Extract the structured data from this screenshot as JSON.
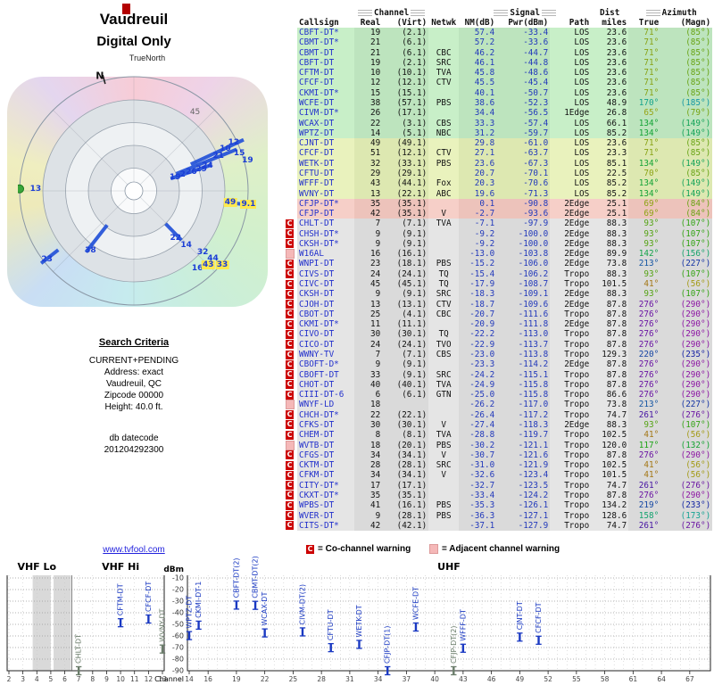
{
  "header": {
    "title": "Vaudreuil",
    "subtitle": "Digital Only"
  },
  "radar": {
    "true_north_label": "TrueNorth",
    "north_label": "N",
    "north_tick_angle": 345,
    "ring_label": "45",
    "spoke_color": "#1f4fd8",
    "dot": {
      "a": 271,
      "r": 1.0,
      "color": "#3aa53a"
    },
    "spokes": [
      {
        "a": 65,
        "r1": 0.55,
        "r2": 1.06
      },
      {
        "a": 68,
        "r1": 0.4,
        "r2": 0.97
      },
      {
        "a": 71.5,
        "r1": 0.34,
        "r2": 0.72
      },
      {
        "a": 97,
        "r1": 0.86,
        "r2": 1.03
      },
      {
        "a": 136,
        "r1": 0.4,
        "r2": 0.6
      },
      {
        "a": 218,
        "r1": 0.38,
        "r2": 0.68
      },
      {
        "a": 232,
        "r1": 0.84,
        "r2": 1.03
      }
    ],
    "labels": [
      {
        "t": "N",
        "a": 343.5,
        "r": 1.05,
        "k": "north"
      },
      {
        "t": "45",
        "a": 38,
        "r": 0.87,
        "k": "gray"
      },
      {
        "t": "24",
        "a": 71.4,
        "r": 0.68
      },
      {
        "t": "21",
        "a": 67.5,
        "r": 0.8
      },
      {
        "t": "10",
        "a": 65.3,
        "r": 0.88
      },
      {
        "t": "12",
        "a": 64.3,
        "r": 0.97
      },
      {
        "t": "15",
        "a": 70.4,
        "r": 0.98
      },
      {
        "t": "19",
        "a": 75,
        "r": 1.03
      },
      {
        "t": "19",
        "a": 71.9,
        "r": 0.38
      },
      {
        "t": "2",
        "a": 71.9,
        "r": 0.45
      },
      {
        "t": "26",
        "a": 71.8,
        "r": 0.53
      },
      {
        "t": "29",
        "a": 72.3,
        "r": 0.62
      },
      {
        "t": "49",
        "a": 96.9,
        "r": 0.85,
        "k": "hl"
      },
      {
        "t": "9.1",
        "a": 96.6,
        "r": 1.01,
        "k": "hl"
      },
      {
        "t": "13",
        "a": 271,
        "r": 0.86
      },
      {
        "t": "38",
        "a": 215.8,
        "r": 0.65
      },
      {
        "t": "23",
        "a": 231.6,
        "r": 0.97
      },
      {
        "t": "22",
        "a": 138.4,
        "r": 0.55
      },
      {
        "t": "14",
        "a": 136,
        "r": 0.66
      },
      {
        "t": "32",
        "a": 131.9,
        "r": 0.81
      },
      {
        "t": "44",
        "a": 130.5,
        "r": 0.91
      },
      {
        "t": "16",
        "a": 140.8,
        "r": 0.88
      },
      {
        "t": "43",
        "a": 135,
        "r": 0.92,
        "k": "hl"
      },
      {
        "t": "33",
        "a": 130,
        "r": 1.01,
        "k": "hl"
      }
    ]
  },
  "search": {
    "heading": "Search Criteria",
    "lines": [
      "CURRENT+PENDING",
      "Address: exact",
      "Vaudreuil, QC",
      "Zipcode 00000",
      "Height: 40.0 ft."
    ],
    "datecode_label": "db datecode",
    "datecode": "201204292300"
  },
  "footer": {
    "link": "www.tvfool.com"
  },
  "legend": {
    "co_symbol": "C",
    "co_text": "= Co-channel warning",
    "adj_text": "= Adjacent channel warning"
  },
  "table": {
    "groups": {
      "channel": "Channel",
      "signal": "Signal",
      "dist": "Dist",
      "azimuth": "Azimuth"
    },
    "headers": [
      "Callsign",
      "Real",
      "(Virt)",
      "Netwk",
      "NM(dB)",
      "Pwr(dBm)",
      "Path",
      "miles",
      "True",
      "(Magn)"
    ],
    "row_fields": [
      "warning",
      "tier",
      "callsign",
      "real",
      "virt",
      "netwk",
      "nm_db",
      "pwr_dbm",
      "path",
      "miles",
      "azimuth_true",
      "azimuth_magn"
    ],
    "rows": [
      [
        "",
        "g",
        "CBFT-DT*",
        "19",
        "(2.1)",
        "",
        "57.4",
        "-33.4",
        "LOS",
        "23.6",
        "71°",
        "(85°)"
      ],
      [
        "",
        "g",
        "CBMT-DT*",
        "21",
        "(6.1)",
        "",
        "57.2",
        "-33.6",
        "LOS",
        "23.6",
        "71°",
        "(85°)"
      ],
      [
        "",
        "g",
        "CBMT-DT",
        "21",
        "(6.1)",
        "CBC",
        "46.2",
        "-44.7",
        "LOS",
        "23.6",
        "71°",
        "(85°)"
      ],
      [
        "",
        "g",
        "CBFT-DT",
        "19",
        "(2.1)",
        "SRC",
        "46.1",
        "-44.8",
        "LOS",
        "23.6",
        "71°",
        "(85°)"
      ],
      [
        "",
        "g",
        "CFTM-DT",
        "10",
        "(10.1)",
        "TVA",
        "45.8",
        "-48.6",
        "LOS",
        "23.6",
        "71°",
        "(85°)"
      ],
      [
        "",
        "g",
        "CFCF-DT",
        "12",
        "(12.1)",
        "CTV",
        "45.5",
        "-45.4",
        "LOS",
        "23.6",
        "71°",
        "(85°)"
      ],
      [
        "",
        "g",
        "CKMI-DT*",
        "15",
        "(15.1)",
        "",
        "40.1",
        "-50.7",
        "LOS",
        "23.6",
        "71°",
        "(85°)"
      ],
      [
        "",
        "g",
        "WCFE-DT",
        "38",
        "(57.1)",
        "PBS",
        "38.6",
        "-52.3",
        "LOS",
        "48.9",
        "170°",
        "(185°)"
      ],
      [
        "",
        "g",
        "CIVM-DT*",
        "26",
        "(17.1)",
        "",
        "34.4",
        "-56.5",
        "1Edge",
        "26.8",
        "65°",
        "(79°)"
      ],
      [
        "",
        "g",
        "WCAX-DT",
        "22",
        "(3.1)",
        "CBS",
        "33.3",
        "-57.4",
        "LOS",
        "66.1",
        "134°",
        "(149°)"
      ],
      [
        "",
        "g",
        "WPTZ-DT",
        "14",
        "(5.1)",
        "NBC",
        "31.2",
        "-59.7",
        "LOS",
        "85.2",
        "134°",
        "(149°)"
      ],
      [
        "",
        "y",
        "CJNT-DT",
        "49",
        "(49.1)",
        "",
        "29.8",
        "-61.0",
        "LOS",
        "23.6",
        "71°",
        "(85°)"
      ],
      [
        "",
        "y",
        "CFCF-DT",
        "51",
        "(12.1)",
        "CTV",
        "27.1",
        "-63.7",
        "LOS",
        "23.3",
        "71°",
        "(85°)"
      ],
      [
        "",
        "y",
        "WETK-DT",
        "32",
        "(33.1)",
        "PBS",
        "23.6",
        "-67.3",
        "LOS",
        "85.1",
        "134°",
        "(149°)"
      ],
      [
        "",
        "y",
        "CFTU-DT",
        "29",
        "(29.1)",
        "",
        "20.7",
        "-70.1",
        "LOS",
        "22.5",
        "70°",
        "(85°)"
      ],
      [
        "",
        "y",
        "WFFF-DT",
        "43",
        "(44.1)",
        "Fox",
        "20.3",
        "-70.6",
        "LOS",
        "85.2",
        "134°",
        "(149°)"
      ],
      [
        "",
        "y",
        "WVNY-DT",
        "13",
        "(22.1)",
        "ABC",
        "19.6",
        "-71.3",
        "LOS",
        "85.2",
        "134°",
        "(149°)"
      ],
      [
        "",
        "p",
        "CFJP-DT*",
        "35",
        "(35.1)",
        "",
        "0.1",
        "-90.8",
        "2Edge",
        "25.1",
        "69°",
        "(84°)"
      ],
      [
        "",
        "p",
        "CFJP-DT",
        "42",
        "(35.1)",
        "V",
        "-2.7",
        "-93.6",
        "2Edge",
        "25.1",
        "69°",
        "(84°)"
      ],
      [
        "C",
        "x",
        "CHLT-DT",
        "7",
        "(7.1)",
        "TVA",
        "-7.1",
        "-97.9",
        "2Edge",
        "88.3",
        "93°",
        "(107°)"
      ],
      [
        "C",
        "x",
        "CHSH-DT*",
        "9",
        "(9.1)",
        "",
        "-9.2",
        "-100.0",
        "2Edge",
        "88.3",
        "93°",
        "(107°)"
      ],
      [
        "C",
        "x",
        "CKSH-DT*",
        "9",
        "(9.1)",
        "",
        "-9.2",
        "-100.0",
        "2Edge",
        "88.3",
        "93°",
        "(107°)"
      ],
      [
        "A",
        "x",
        "W16AL",
        "16",
        "(16.1)",
        "",
        "-13.0",
        "-103.8",
        "2Edge",
        "89.9",
        "142°",
        "(156°)"
      ],
      [
        "C",
        "x",
        "WNPI-DT",
        "23",
        "(18.1)",
        "PBS",
        "-15.2",
        "-106.0",
        "2Edge",
        "73.8",
        "213°",
        "(227°)"
      ],
      [
        "C",
        "x",
        "CIVS-DT",
        "24",
        "(24.1)",
        "TQ",
        "-15.4",
        "-106.2",
        "Tropo",
        "88.3",
        "93°",
        "(107°)"
      ],
      [
        "C",
        "x",
        "CIVC-DT",
        "45",
        "(45.1)",
        "TQ",
        "-17.9",
        "-108.7",
        "Tropo",
        "101.5",
        "41°",
        "(56°)"
      ],
      [
        "C",
        "x",
        "CKSH-DT",
        "9",
        "(9.1)",
        "SRC",
        "-18.3",
        "-109.1",
        "2Edge",
        "88.3",
        "93°",
        "(107°)"
      ],
      [
        "C",
        "x",
        "CJOH-DT",
        "13",
        "(13.1)",
        "CTV",
        "-18.7",
        "-109.6",
        "2Edge",
        "87.8",
        "276°",
        "(290°)"
      ],
      [
        "C",
        "x",
        "CBOT-DT",
        "25",
        "(4.1)",
        "CBC",
        "-20.7",
        "-111.6",
        "Tropo",
        "87.8",
        "276°",
        "(290°)"
      ],
      [
        "C",
        "x",
        "CKMI-DT*",
        "11",
        "(11.1)",
        "",
        "-20.9",
        "-111.8",
        "2Edge",
        "87.8",
        "276°",
        "(290°)"
      ],
      [
        "C",
        "x",
        "CIVO-DT",
        "30",
        "(30.1)",
        "TQ",
        "-22.2",
        "-113.0",
        "Tropo",
        "87.8",
        "276°",
        "(290°)"
      ],
      [
        "C",
        "x",
        "CICO-DT",
        "24",
        "(24.1)",
        "TVO",
        "-22.9",
        "-113.7",
        "Tropo",
        "87.8",
        "276°",
        "(290°)"
      ],
      [
        "C",
        "x",
        "WWNY-TV",
        "7",
        "(7.1)",
        "CBS",
        "-23.0",
        "-113.8",
        "Tropo",
        "129.3",
        "220°",
        "(235°)"
      ],
      [
        "C",
        "x",
        "CBOFT-D*",
        "9",
        "(9.1)",
        "",
        "-23.3",
        "-114.2",
        "2Edge",
        "87.8",
        "276°",
        "(290°)"
      ],
      [
        "C",
        "x",
        "CBOFT-DT",
        "33",
        "(9.1)",
        "SRC",
        "-24.2",
        "-115.1",
        "Tropo",
        "87.8",
        "276°",
        "(290°)"
      ],
      [
        "C",
        "x",
        "CHOT-DT",
        "40",
        "(40.1)",
        "TVA",
        "-24.9",
        "-115.8",
        "Tropo",
        "87.8",
        "276°",
        "(290°)"
      ],
      [
        "C",
        "x",
        "CIII-DT-6",
        "6",
        "(6.1)",
        "GTN",
        "-25.0",
        "-115.8",
        "Tropo",
        "86.6",
        "276°",
        "(290°)"
      ],
      [
        "A",
        "x",
        "WNYF-LD",
        "18",
        "",
        "",
        "-26.2",
        "-117.0",
        "Tropo",
        "73.8",
        "213°",
        "(227°)"
      ],
      [
        "C",
        "x",
        "CHCH-DT*",
        "22",
        "(22.1)",
        "",
        "-26.4",
        "-117.2",
        "Tropo",
        "74.7",
        "261°",
        "(276°)"
      ],
      [
        "C",
        "x",
        "CFKS-DT",
        "30",
        "(30.1)",
        "V",
        "-27.4",
        "-118.3",
        "2Edge",
        "88.3",
        "93°",
        "(107°)"
      ],
      [
        "C",
        "x",
        "CHEM-DT",
        "8",
        "(8.1)",
        "TVA",
        "-28.8",
        "-119.7",
        "Tropo",
        "102.5",
        "41°",
        "(56°)"
      ],
      [
        "A",
        "x",
        "WVTB-DT",
        "18",
        "(20.1)",
        "PBS",
        "-30.2",
        "-121.1",
        "Tropo",
        "120.0",
        "117°",
        "(132°)"
      ],
      [
        "C",
        "x",
        "CFGS-DT",
        "34",
        "(34.1)",
        "V",
        "-30.7",
        "-121.6",
        "Tropo",
        "87.8",
        "276°",
        "(290°)"
      ],
      [
        "C",
        "x",
        "CKTM-DT",
        "28",
        "(28.1)",
        "SRC",
        "-31.0",
        "-121.9",
        "Tropo",
        "102.5",
        "41°",
        "(56°)"
      ],
      [
        "C",
        "x",
        "CFKM-DT",
        "34",
        "(34.1)",
        "V",
        "-32.6",
        "-123.4",
        "Tropo",
        "101.5",
        "41°",
        "(56°)"
      ],
      [
        "C",
        "x",
        "CITY-DT*",
        "17",
        "(17.1)",
        "",
        "-32.7",
        "-123.5",
        "Tropo",
        "74.7",
        "261°",
        "(276°)"
      ],
      [
        "C",
        "x",
        "CKXT-DT*",
        "35",
        "(35.1)",
        "",
        "-33.4",
        "-124.2",
        "Tropo",
        "87.8",
        "276°",
        "(290°)"
      ],
      [
        "C",
        "x",
        "WPBS-DT",
        "41",
        "(16.1)",
        "PBS",
        "-35.3",
        "-126.1",
        "Tropo",
        "134.2",
        "219°",
        "(233°)"
      ],
      [
        "C",
        "x",
        "WVER-DT",
        "9",
        "(28.1)",
        "PBS",
        "-36.3",
        "-127.1",
        "Tropo",
        "128.6",
        "158°",
        "(173°)"
      ],
      [
        "C",
        "x",
        "CITS-DT*",
        "42",
        "(42.1)",
        "",
        "-37.1",
        "-127.9",
        "Tropo",
        "74.7",
        "261°",
        "(276°)"
      ]
    ]
  },
  "chart_data": {
    "type": "scatter",
    "title": "",
    "ylabel": "dBm",
    "xlabel": "Channel",
    "ylim": [
      -90,
      -10
    ],
    "grid": "dotted",
    "yticks": [
      -10,
      -20,
      -30,
      -40,
      -50,
      -60,
      -70,
      -80,
      -90
    ],
    "bands": [
      {
        "label": "VHF Lo",
        "ch_range": [
          2,
          6
        ]
      },
      {
        "label": "VHF Hi",
        "ch_range": [
          7,
          13
        ]
      },
      {
        "label": "UHF",
        "ch_range": [
          14,
          69
        ]
      }
    ],
    "vhf_ticks": [
      2,
      3,
      4,
      5,
      6,
      7,
      8,
      9,
      10,
      11,
      12,
      13
    ],
    "uhf_ticks": [
      14,
      16,
      19,
      22,
      25,
      28,
      31,
      34,
      37,
      40,
      43,
      46,
      49,
      52,
      55,
      58,
      61,
      64,
      67
    ],
    "shaded_ch_ranges": [
      [
        3.7,
        5.0
      ],
      [
        5.2,
        6.45
      ]
    ],
    "marker_colors": {
      "blue": "#1a39c2",
      "gray": "#6b7d6b"
    },
    "points": [
      {
        "label": "CHLT-DT",
        "ch": 7,
        "dbm": -97.9,
        "color": "gray"
      },
      {
        "label": "CFTM-DT",
        "ch": 10,
        "dbm": -48.6,
        "color": "blue"
      },
      {
        "label": "CFCF-DT",
        "ch": 12,
        "dbm": -45.4,
        "color": "blue"
      },
      {
        "label": "WVNY-DT",
        "ch": 13,
        "dbm": -71.3,
        "color": "gray"
      },
      {
        "label": "WPTZ-DT",
        "ch": 14,
        "dbm": -59.7,
        "color": "blue"
      },
      {
        "label": "CKMI-DT-1",
        "ch": 15,
        "dbm": -50.7,
        "color": "blue"
      },
      {
        "label": "CBFT-DT(2)",
        "ch": 19,
        "dbm": -33.4,
        "color": "blue"
      },
      {
        "label": "CBMT-DT(2)",
        "ch": 21,
        "dbm": -33.6,
        "color": "blue"
      },
      {
        "label": "WCAX-DT",
        "ch": 22,
        "dbm": -57.4,
        "color": "blue"
      },
      {
        "label": "CIVM-DT(2)",
        "ch": 26,
        "dbm": -56.5,
        "color": "blue"
      },
      {
        "label": "CFTU-DT",
        "ch": 29,
        "dbm": -70.1,
        "color": "blue"
      },
      {
        "label": "WETK-DT",
        "ch": 32,
        "dbm": -67.3,
        "color": "blue"
      },
      {
        "label": "CFJP-DT(1)",
        "ch": 35,
        "dbm": -90.8,
        "color": "blue"
      },
      {
        "label": "WCFE-DT",
        "ch": 38,
        "dbm": -52.3,
        "color": "blue"
      },
      {
        "label": "CFJP-DT(2)",
        "ch": 42,
        "dbm": -93.6,
        "color": "gray"
      },
      {
        "label": "WFFF-DT",
        "ch": 43,
        "dbm": -70.6,
        "color": "blue"
      },
      {
        "label": "CJNT-DT",
        "ch": 49,
        "dbm": -61.0,
        "color": "blue"
      },
      {
        "label": "CFCF-DT",
        "ch": 51,
        "dbm": -63.7,
        "color": "blue"
      }
    ]
  }
}
